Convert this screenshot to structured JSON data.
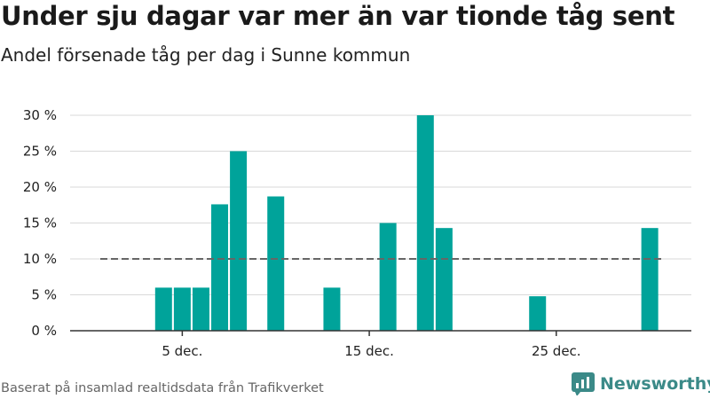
{
  "title": "Under sju dagar var mer än var tionde tåg sent",
  "subtitle": "Andel försenade tåg per dag i Sunne kommun",
  "source": "Baserat på insamlad realtidsdata från Trafikverket",
  "brand": {
    "name": "Newsworthy",
    "icon": "bar-chart-logo-icon",
    "color": "#3b8a88"
  },
  "colors": {
    "bar": "#00a39a",
    "grid": "#d9d9d9",
    "axis": "#333333",
    "reference": "#666666"
  },
  "chart_data": {
    "type": "bar",
    "x_unit": "december day",
    "x": [
      1,
      2,
      3,
      4,
      5,
      6,
      7,
      8,
      9,
      10,
      11,
      12,
      13,
      14,
      15,
      16,
      17,
      18,
      19,
      20,
      21,
      22,
      23,
      24,
      25,
      26,
      27,
      28,
      29,
      30,
      31
    ],
    "values": [
      null,
      null,
      null,
      6,
      6,
      6,
      17.6,
      25,
      null,
      18.7,
      null,
      null,
      6,
      null,
      null,
      15,
      null,
      30,
      14.3,
      null,
      null,
      null,
      null,
      4.8,
      null,
      null,
      null,
      null,
      null,
      14.3,
      null
    ],
    "x_tick_labels": [
      {
        "x": 5,
        "label": "5 dec."
      },
      {
        "x": 15,
        "label": "15 dec."
      },
      {
        "x": 25,
        "label": "25 dec."
      }
    ],
    "y_ticks": [
      0,
      5,
      10,
      15,
      20,
      25,
      30
    ],
    "y_tick_labels": [
      "0 %",
      "5 %",
      "10 %",
      "15 %",
      "20 %",
      "25 %",
      "30 %"
    ],
    "ylim": [
      0,
      30
    ],
    "reference_line": {
      "value": 10,
      "style": "dashed"
    },
    "grid": true,
    "legend": "none"
  }
}
